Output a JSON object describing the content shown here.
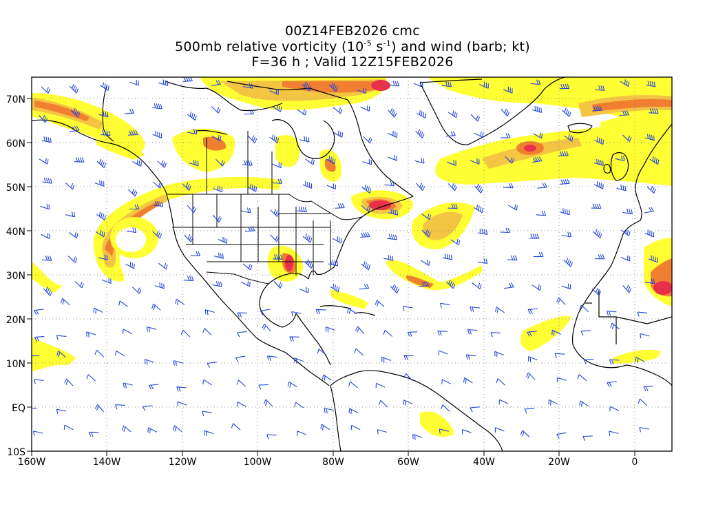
{
  "title": {
    "line1": "00Z14FEB2026 cmc",
    "line2_prefix": "500mb relative vorticity (10",
    "line2_exp1": "-5",
    "line2_mid": " s",
    "line2_exp2": "-1",
    "line2_suffix": ") and wind (barb; kt)",
    "line3": "F=36 h ; Valid 12Z15FEB2026"
  },
  "axes": {
    "x_labels": [
      "160W",
      "140W",
      "120W",
      "100W",
      "80W",
      "60W",
      "40W",
      "20W",
      "0"
    ],
    "y_labels": [
      "70N",
      "60N",
      "50N",
      "40N",
      "30N",
      "20N",
      "10N",
      "EQ",
      "10S"
    ]
  },
  "colors": {
    "vorticity_low": "#ffff33",
    "vorticity_mid": "#f4c542",
    "vorticity_high": "#f08030",
    "vorticity_max": "#e8304a",
    "wind_barbs": "#2244dd",
    "coastlines": "#000000",
    "grid": "#888888"
  }
}
